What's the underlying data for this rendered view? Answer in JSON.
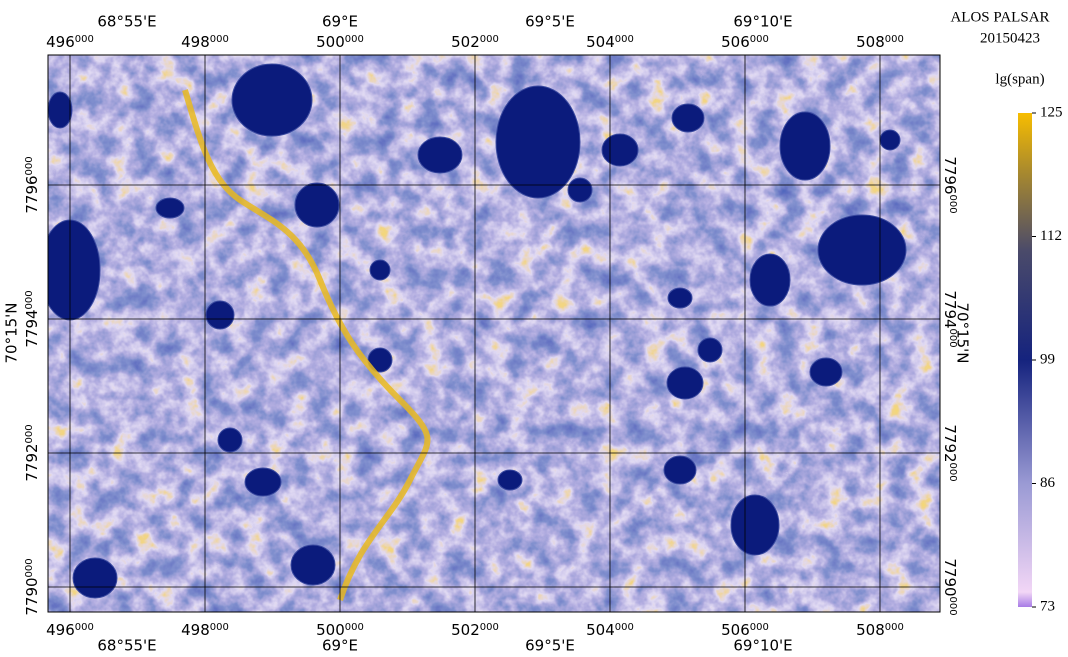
{
  "map": {
    "title": "ALOS PALSAR",
    "date": "20150423",
    "xlim": [
      495674,
      508889
    ],
    "xticks": [
      496000,
      498000,
      500000,
      502000,
      504000,
      506000,
      508000
    ],
    "ylim": [
      7789627,
      7797940
    ],
    "yticks": [
      7790000,
      7792000,
      7794000,
      7796000
    ],
    "grid": true,
    "lon_labels": [
      "68°55'E",
      "69°E",
      "69°5'E",
      "69°10'E"
    ],
    "lat_label": "70°15'N",
    "colorbar": {
      "label": "lg(span)",
      "lim": [
        73,
        125
      ],
      "ticks": [
        125,
        112,
        99,
        86,
        73
      ]
    }
  }
}
